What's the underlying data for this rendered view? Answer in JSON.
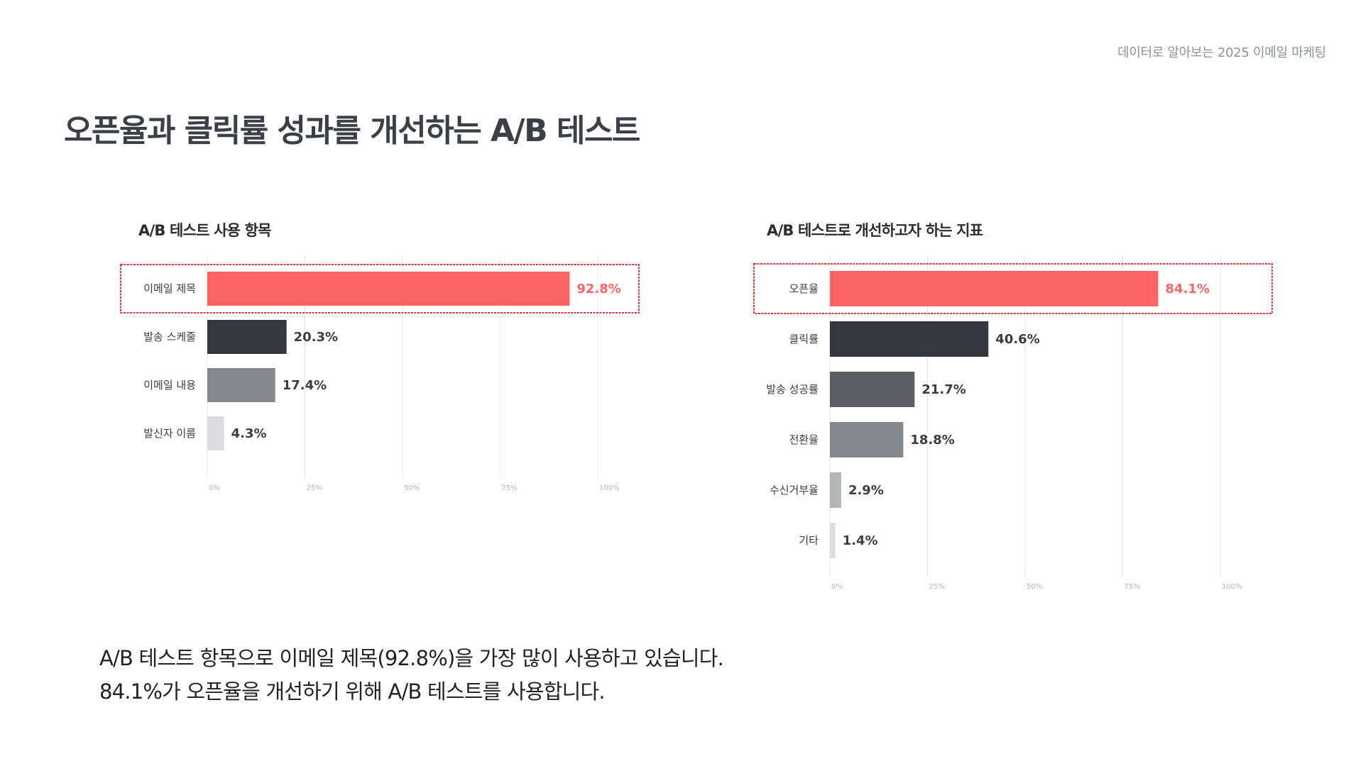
{
  "header": {
    "tag": "데이터로 알아보는 2025 이메일 마케팅"
  },
  "page": {
    "title": "오픈율과 클릭률 성과를 개선하는 A/B 테스트"
  },
  "colors": {
    "highlight": "#ff6464",
    "dark": "#33373f",
    "grid": "#e8e9eb",
    "frame": "#e8363d"
  },
  "chart_data": [
    {
      "type": "bar",
      "orientation": "horizontal",
      "title": "A/B 테스트 사용 항목",
      "categories": [
        "이메일 제목",
        "발송 스케줄",
        "이메일 내용",
        "발신자 이름"
      ],
      "values": [
        92.8,
        20.3,
        17.4,
        4.3
      ],
      "value_labels": [
        "92.8%",
        "20.3%",
        "17.4%",
        "4.3%"
      ],
      "bar_colors": [
        "#ff6464",
        "#33373f",
        "#85888c",
        "#dcdde0"
      ],
      "highlight_index": 0,
      "xlim": [
        0,
        100
      ],
      "xticks": [
        "0%",
        "25%",
        "50%",
        "75%",
        "100%"
      ],
      "grid": true
    },
    {
      "type": "bar",
      "orientation": "horizontal",
      "title": "A/B 테스트로 개선하고자 하는 지표",
      "categories": [
        "오픈율",
        "클릭률",
        "발송 성공률",
        "전환율",
        "수신거부율",
        "기타"
      ],
      "values": [
        84.1,
        40.6,
        21.7,
        18.8,
        2.9,
        1.4
      ],
      "value_labels": [
        "84.1%",
        "40.6%",
        "21.7%",
        "18.8%",
        "2.9%",
        "1.4%"
      ],
      "bar_colors": [
        "#ff6464",
        "#33373f",
        "#5b5e63",
        "#85888c",
        "#b2b4b7",
        "#dcdde0"
      ],
      "highlight_index": 0,
      "xlim": [
        0,
        100
      ],
      "xticks": [
        "0%",
        "25%",
        "50%",
        "75%",
        "100%"
      ],
      "grid": true
    }
  ],
  "summary": {
    "line1": "A/B 테스트 항목으로 이메일 제목(92.8%)을 가장 많이 사용하고 있습니다.",
    "line2": "84.1%가 오픈율을 개선하기 위해 A/B 테스트를 사용합니다."
  }
}
